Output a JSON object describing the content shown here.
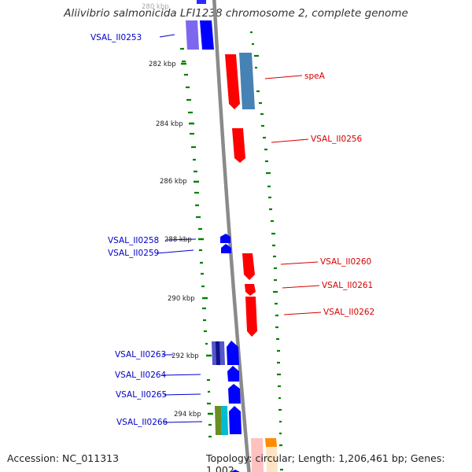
{
  "title": "Aliivibrio salmonicida LFI1238 chromosome 2, complete genome",
  "footer": {
    "accession": "Accession: NC_011313",
    "topology": "Topology: circular; Length: 1,206,461 bp; Genes: 1,002"
  },
  "colors": {
    "forward_gene": "#ff0000",
    "reverse_gene": "#0000ff",
    "forward_label": "#d40000",
    "reverse_label": "#0000c8",
    "backbone": "#888888",
    "gc_skew_dash": "#008000",
    "rrna_like": "#4682b4"
  },
  "tick_labels": [
    "280 kbp",
    "282 kbp",
    "284 kbp",
    "286 kbp",
    "288 kbp",
    "290 kbp",
    "292 kbp",
    "294 kbp"
  ],
  "gene_labels": {
    "forward": [
      "speA",
      "VSAL_II0256",
      "VSAL_II0260",
      "VSAL_II0261",
      "VSAL_II0262"
    ],
    "reverse": [
      "VSAL_II0253",
      "VSAL_II0258",
      "VSAL_II0259",
      "VSAL_II0263",
      "VSAL_II0264",
      "VSAL_II0265",
      "VSAL_II0266"
    ]
  }
}
